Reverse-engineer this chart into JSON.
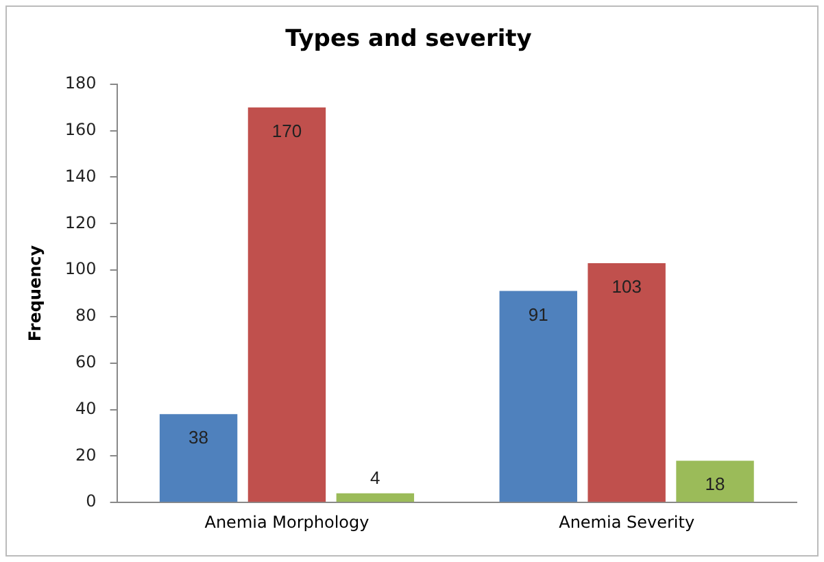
{
  "chart_data": {
    "type": "bar",
    "title": "Types and severity",
    "ylabel": "Frequency",
    "categories": [
      "Anemia Morphology",
      "Anemia Severity"
    ],
    "series": [
      {
        "color": "#4f81bd",
        "values": [
          38,
          91
        ]
      },
      {
        "color": "#c0504d",
        "values": [
          170,
          103
        ]
      },
      {
        "color": "#9bbb59",
        "values": [
          4,
          18
        ]
      }
    ],
    "ylim": [
      0,
      180
    ],
    "yticks": [
      0,
      20,
      40,
      60,
      80,
      100,
      120,
      140,
      160,
      180
    ],
    "grid": false,
    "legend": false,
    "data_labels": true
  }
}
